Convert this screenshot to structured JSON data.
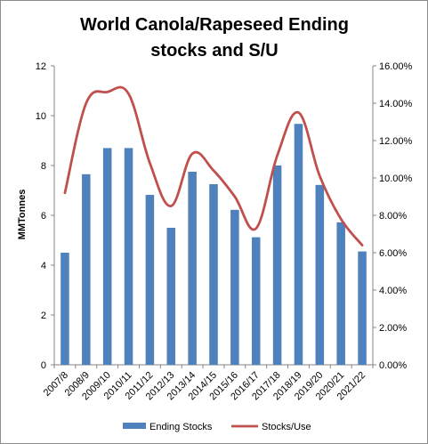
{
  "chart_data": {
    "type": "bar",
    "title_lines": [
      "World Canola/Rapeseed Ending",
      "stocks and S/U"
    ],
    "categories": [
      "2007/8",
      "2008/9",
      "2009/10",
      "2010/11",
      "2011/12",
      "2012/13",
      "2013/14",
      "2014/15",
      "2015/16",
      "2016/17",
      "2017/18",
      "2018/19",
      "2019/20",
      "2020/21",
      "2021/22"
    ],
    "ylabel": "MMTonnes",
    "ylim": [
      0,
      12
    ],
    "y_ticks": [
      "0",
      "2",
      "4",
      "6",
      "8",
      "10",
      "12"
    ],
    "y2lim": [
      0,
      0.16
    ],
    "y2_ticks": [
      "0.00%",
      "2.00%",
      "4.00%",
      "6.00%",
      "8.00%",
      "10.00%",
      "12.00%",
      "14.00%",
      "16.00%"
    ],
    "grid": false,
    "legend_position": "bottom",
    "series": [
      {
        "name": "Ending Stocks",
        "type": "bar",
        "axis": "left",
        "color": "#4f81bd",
        "values": [
          4.5,
          7.65,
          8.7,
          8.7,
          6.82,
          5.5,
          7.75,
          7.25,
          6.22,
          5.12,
          8.0,
          9.67,
          7.22,
          5.72,
          4.55
        ]
      },
      {
        "name": "Stocks/Use",
        "type": "line",
        "axis": "right",
        "color": "#c0504d",
        "values": [
          0.092,
          0.14,
          0.146,
          0.145,
          0.108,
          0.085,
          0.113,
          0.104,
          0.09,
          0.073,
          0.112,
          0.135,
          0.101,
          0.078,
          0.064
        ]
      }
    ]
  }
}
